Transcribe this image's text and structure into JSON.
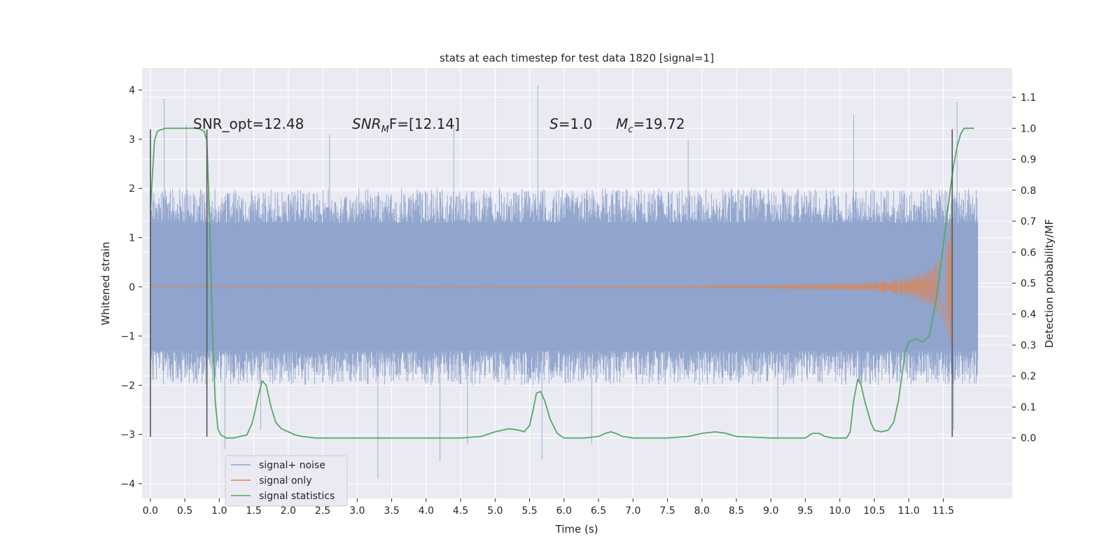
{
  "chart_data": {
    "type": "line",
    "title": "stats at each timestep for test data 1820 [signal=1]",
    "xlabel": "Time (s)",
    "ylabel_left": "Whitened strain",
    "ylabel_right": "Detection probability/MF",
    "xlim": [
      -0.12,
      12.5
    ],
    "ylim_left": [
      -4.3,
      4.45
    ],
    "ylim_right": [
      -0.195,
      1.195
    ],
    "x_ticks": [
      0.0,
      0.5,
      1.0,
      1.5,
      2.0,
      2.5,
      3.0,
      3.5,
      4.0,
      4.5,
      5.0,
      5.5,
      6.0,
      6.5,
      7.0,
      7.5,
      8.0,
      8.5,
      9.0,
      9.5,
      10.0,
      10.5,
      11.0,
      11.5
    ],
    "x_tick_labels": [
      "0.0",
      "0.5",
      "1.0",
      "1.5",
      "2.0",
      "2.5",
      "3.0",
      "3.5",
      "4.0",
      "4.5",
      "5.0",
      "5.5",
      "6.0",
      "6.5",
      "7.0",
      "7.5",
      "8.0",
      "8.5",
      "9.0",
      "9.5",
      "10.0",
      "10.5",
      "11.0",
      "11.5"
    ],
    "y_left_ticks": [
      4,
      3,
      2,
      1,
      0,
      -1,
      -2,
      -3,
      -4
    ],
    "y_left_tick_labels": [
      "4",
      "3",
      "2",
      "1",
      "0",
      "−1",
      "−2",
      "−3",
      "−4"
    ],
    "y_right_ticks": [
      1.1,
      1.0,
      0.9,
      0.8,
      0.7,
      0.6,
      0.5,
      0.4,
      0.3,
      0.2,
      0.1,
      0.0
    ],
    "y_right_tick_labels": [
      "1.1",
      "1.0",
      "0.9",
      "0.8",
      "0.7",
      "0.6",
      "0.5",
      "0.4",
      "0.3",
      "0.2",
      "0.1",
      "0.0"
    ],
    "grid": true,
    "legend_placement": "lower-left",
    "annotations": {
      "snr_opt": "SNR_opt=12.48",
      "snr_mf_main": "SNR",
      "snr_mf_sub": "M",
      "snr_mf_rest": "F=[12.14]",
      "s_var": "S",
      "s_rest": "=1.0",
      "mc_var": "M",
      "mc_sub": "c",
      "mc_rest": "=19.72"
    },
    "vertical_markers": [
      {
        "x": 0.0,
        "y_range": [
          -3.05,
          3.2
        ],
        "color": "#555555"
      },
      {
        "x": 0.82,
        "y_range": [
          -3.05,
          3.2
        ],
        "color": "#555555"
      },
      {
        "x": 11.63,
        "y_range": [
          -3.05,
          3.2
        ],
        "color": "#555555"
      }
    ],
    "series": [
      {
        "name": "signal+ noise",
        "color": "#8fa3cc",
        "axis": "left",
        "x_range": [
          0.0,
          12.0
        ],
        "band": [
          -1.3,
          1.3
        ],
        "typical_peaks": [
          -2.0,
          2.0
        ],
        "extreme_values": [
          {
            "x": 0.2,
            "y": 3.82
          },
          {
            "x": 0.52,
            "y": 3.3
          },
          {
            "x": 1.08,
            "y": -3.3
          },
          {
            "x": 1.6,
            "y": -2.9
          },
          {
            "x": 2.6,
            "y": 3.1
          },
          {
            "x": 3.3,
            "y": -3.9
          },
          {
            "x": 4.2,
            "y": -3.55
          },
          {
            "x": 4.4,
            "y": 3.3
          },
          {
            "x": 4.6,
            "y": -3.2
          },
          {
            "x": 5.62,
            "y": 4.1
          },
          {
            "x": 5.68,
            "y": -3.5
          },
          {
            "x": 6.4,
            "y": -3.2
          },
          {
            "x": 7.8,
            "y": 3.0
          },
          {
            "x": 9.1,
            "y": -3.1
          },
          {
            "x": 10.2,
            "y": 3.5
          },
          {
            "x": 11.7,
            "y": 3.75
          },
          {
            "x": 11.65,
            "y": -2.9
          }
        ]
      },
      {
        "name": "signal only",
        "color": "#dd8452",
        "axis": "left",
        "model": "chirp",
        "x_range": [
          0.0,
          11.63
        ],
        "amplitude_points": [
          [
            0.0,
            0.01
          ],
          [
            7.0,
            0.015
          ],
          [
            9.0,
            0.04
          ],
          [
            10.0,
            0.07
          ],
          [
            10.5,
            0.1
          ],
          [
            11.0,
            0.2
          ],
          [
            11.3,
            0.38
          ],
          [
            11.5,
            0.7
          ],
          [
            11.6,
            1.1
          ],
          [
            11.63,
            2.6
          ]
        ]
      },
      {
        "name": "signal statistics",
        "color": "#55a868",
        "axis": "right",
        "x": [
          0.0,
          0.06,
          0.1,
          0.15,
          0.22,
          0.3,
          0.5,
          0.7,
          0.78,
          0.82,
          0.86,
          0.9,
          0.94,
          0.98,
          1.02,
          1.06,
          1.1,
          1.2,
          1.4,
          1.48,
          1.55,
          1.62,
          1.68,
          1.75,
          1.82,
          1.9,
          2.0,
          2.1,
          2.2,
          2.4,
          3.0,
          4.0,
          4.5,
          4.8,
          5.0,
          5.2,
          5.35,
          5.42,
          5.5,
          5.56,
          5.6,
          5.66,
          5.72,
          5.8,
          5.9,
          6.0,
          6.3,
          6.5,
          6.6,
          6.68,
          6.75,
          6.85,
          7.0,
          7.5,
          7.8,
          8.0,
          8.2,
          8.35,
          8.5,
          9.0,
          9.5,
          9.6,
          9.7,
          9.78,
          9.9,
          10.1,
          10.15,
          10.2,
          10.26,
          10.31,
          10.36,
          10.45,
          10.5,
          10.6,
          10.7,
          10.78,
          10.85,
          10.9,
          10.95,
          11.0,
          11.1,
          11.2,
          11.3,
          11.4,
          11.5,
          11.6,
          11.65,
          11.7,
          11.75,
          11.8,
          11.9,
          11.95
        ],
        "y": [
          0.74,
          0.96,
          0.99,
          0.995,
          1.0,
          1.0,
          1.0,
          1.0,
          0.99,
          0.96,
          0.7,
          0.35,
          0.12,
          0.03,
          0.01,
          0.005,
          0.0,
          0.0,
          0.01,
          0.05,
          0.12,
          0.185,
          0.17,
          0.1,
          0.05,
          0.03,
          0.02,
          0.01,
          0.005,
          0.0,
          0.0,
          0.0,
          0.0,
          0.005,
          0.02,
          0.03,
          0.025,
          0.02,
          0.04,
          0.1,
          0.145,
          0.15,
          0.12,
          0.06,
          0.015,
          0.0,
          0.0,
          0.005,
          0.015,
          0.02,
          0.015,
          0.005,
          0.0,
          0.0,
          0.005,
          0.015,
          0.02,
          0.015,
          0.005,
          0.0,
          0.0,
          0.015,
          0.015,
          0.005,
          0.0,
          0.0,
          0.02,
          0.12,
          0.19,
          0.17,
          0.12,
          0.05,
          0.025,
          0.02,
          0.025,
          0.05,
          0.12,
          0.2,
          0.28,
          0.31,
          0.32,
          0.31,
          0.33,
          0.45,
          0.62,
          0.8,
          0.88,
          0.94,
          0.98,
          1.0,
          1.0,
          1.0
        ]
      }
    ]
  }
}
